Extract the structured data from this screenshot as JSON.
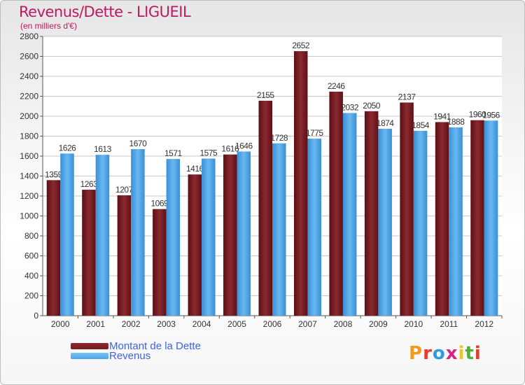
{
  "chart_data": {
    "type": "bar",
    "title": "Revenus/Dette - LIGUEIL",
    "subtitle": "(en milliers d'€)",
    "categories": [
      "2000",
      "2001",
      "2002",
      "2003",
      "2004",
      "2005",
      "2006",
      "2007",
      "2008",
      "2009",
      "2010",
      "2011",
      "2012"
    ],
    "series": [
      {
        "name": "Montant de la Dette",
        "color": "#7a1a1f",
        "values": [
          1359,
          1263,
          1207,
          1069,
          1416,
          1616,
          2155,
          2652,
          2246,
          2050,
          2137,
          1941,
          1960
        ]
      },
      {
        "name": "Revenus",
        "color": "#4ea6e6",
        "values": [
          1626,
          1613,
          1670,
          1571,
          1575,
          1646,
          1728,
          1775,
          2032,
          1874,
          1854,
          1888,
          1956
        ]
      }
    ],
    "ylim": [
      0,
      2800
    ],
    "yticks": [
      0,
      200,
      400,
      600,
      800,
      1000,
      1200,
      1400,
      1600,
      1800,
      2000,
      2200,
      2400,
      2600,
      2800
    ],
    "grid": true,
    "legend_position": "bottom-left"
  },
  "legend": {
    "debt_label": "Montant de la Dette",
    "revenue_label": "Revenus"
  },
  "logo": {
    "letters": [
      "P",
      "r",
      "o",
      "x",
      "i",
      "t",
      "i"
    ],
    "colors": [
      "#f29a1e",
      "#e53b2c",
      "#2e9be0",
      "#d9218a",
      "#f2c21e",
      "#4caf3a",
      "#e53b2c"
    ]
  }
}
